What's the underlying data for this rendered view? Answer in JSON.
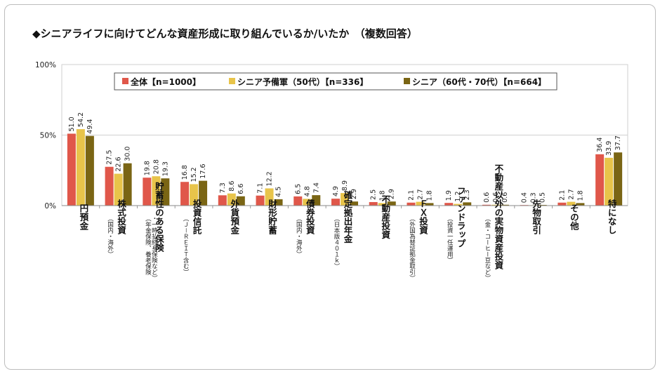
{
  "title": "◆シニアライフに向けてどんな資産形成に取り組んでいるか/いたか　（複数回答）",
  "colors": {
    "all": "#e0574a",
    "pre": "#e8c44a",
    "senior": "#7a6514",
    "grid": "#cfcfcf"
  },
  "chart_data": {
    "type": "bar",
    "ylim": [
      0,
      100
    ],
    "y_ticks": [
      "0%",
      "50%",
      "100%"
    ],
    "legend_position": "top",
    "series": [
      {
        "name": "全体【n=1000】",
        "values": [
          51.0,
          27.5,
          19.8,
          16.8,
          7.3,
          7.1,
          6.5,
          4.9,
          2.5,
          2.1,
          1.9,
          0.6,
          0.4,
          2.1,
          36.4
        ]
      },
      {
        "name": "シニア予備軍（50代）【n=336】",
        "values": [
          54.2,
          22.6,
          20.8,
          15.2,
          8.6,
          12.2,
          4.8,
          8.9,
          1.8,
          2.7,
          1.2,
          0.6,
          0.3,
          2.7,
          33.9
        ]
      },
      {
        "name": "シニア（60代・70代）【n=664】",
        "values": [
          49.4,
          30.0,
          19.3,
          17.6,
          6.6,
          4.5,
          7.4,
          2.9,
          2.9,
          1.8,
          2.3,
          0.6,
          0.5,
          1.8,
          37.7
        ]
      }
    ],
    "categories": [
      {
        "main": "円預金",
        "sub": []
      },
      {
        "main": "株式投資",
        "sub": [
          "（国内・海外）"
        ]
      },
      {
        "main": "貯蓄性のある保険",
        "sub": [
          "（年金保険、養老保険",
          "・一時払終身保険など）"
        ]
      },
      {
        "main": "投資信託",
        "sub": [
          "（Ｊ－ＲＥＩＴ含む）"
        ]
      },
      {
        "main": "外貨預金",
        "sub": []
      },
      {
        "main": "財形貯蓄",
        "sub": []
      },
      {
        "main": "債券投資",
        "sub": [
          "（国内・海外）"
        ]
      },
      {
        "main": "確定拠出年金",
        "sub": [
          "（日本版４０１ｋ）"
        ]
      },
      {
        "main": "不動産投資",
        "sub": []
      },
      {
        "main": "ＦＸ投資",
        "sub": [
          "（外国為替証拠金取引）"
        ]
      },
      {
        "main": "ファンドラップ",
        "sub": [
          "（投資一任運用）"
        ]
      },
      {
        "main": "不動産以外の実物資産投資",
        "sub": [
          "（金・コーヒー豆など）"
        ]
      },
      {
        "main": "先物取引",
        "sub": []
      },
      {
        "main": "その他",
        "sub": []
      },
      {
        "main": "特になし",
        "sub": []
      }
    ]
  }
}
